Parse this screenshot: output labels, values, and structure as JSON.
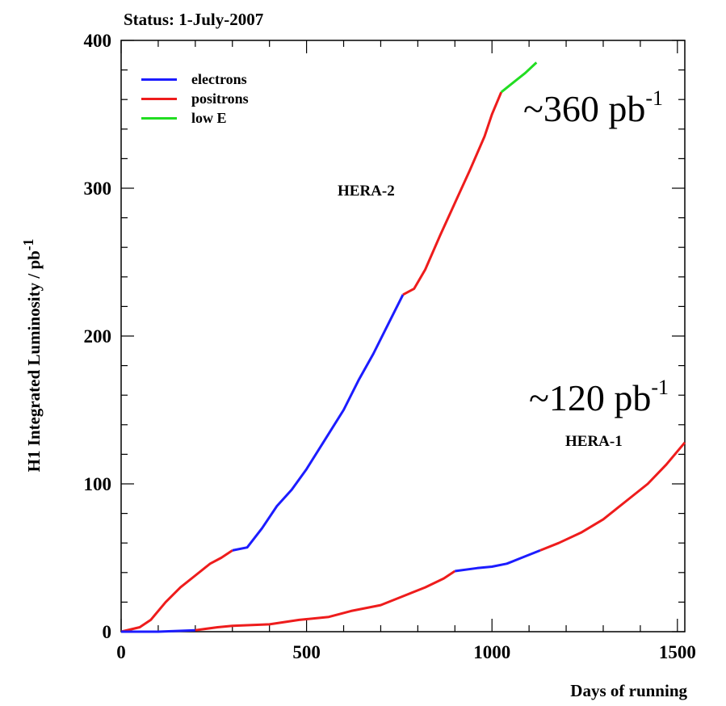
{
  "status_text": "Status:  1-July-2007",
  "annotations": {
    "lumi_hera2": "~360 pb",
    "lumi_hera2_sup": "-1",
    "lumi_hera1": "~120 pb",
    "lumi_hera1_sup": "-1",
    "hera2_label": "HERA-2",
    "hera1_label": "HERA-1"
  },
  "chart_data": {
    "type": "line",
    "title": "",
    "xlabel": "Days of running",
    "ylabel": "H1 Integrated Luminosity / pb",
    "ylabel_sup": "-1",
    "xlim": [
      0,
      1520
    ],
    "ylim": [
      0,
      400
    ],
    "xticks": [
      0,
      500,
      1000,
      1500
    ],
    "yticks": [
      0,
      100,
      200,
      300,
      400
    ],
    "legend": [
      {
        "name": "electrons",
        "color": "#1c1cff"
      },
      {
        "name": "positrons",
        "color": "#ee1c1c"
      },
      {
        "name": "low E",
        "color": "#22dd22"
      }
    ],
    "series": [
      {
        "name": "HERA-2 positrons",
        "color": "#ee1c1c",
        "x": [
          0,
          50,
          80,
          120,
          160,
          200,
          240,
          270,
          300
        ],
        "y": [
          0,
          3,
          8,
          20,
          30,
          38,
          46,
          50,
          55
        ]
      },
      {
        "name": "HERA-2 electrons",
        "color": "#1c1cff",
        "x": [
          300,
          340,
          380,
          420,
          460,
          500,
          550,
          600,
          640,
          680,
          720,
          760
        ],
        "y": [
          55,
          57,
          70,
          85,
          96,
          110,
          130,
          150,
          170,
          188,
          208,
          228
        ]
      },
      {
        "name": "HERA-2 positrons",
        "color": "#ee1c1c",
        "x": [
          760,
          790,
          820,
          860,
          900,
          940,
          980,
          1000,
          1025
        ],
        "y": [
          228,
          232,
          245,
          268,
          290,
          312,
          335,
          350,
          365
        ]
      },
      {
        "name": "HERA-2 low E",
        "color": "#22dd22",
        "x": [
          1025,
          1060,
          1090,
          1120
        ],
        "y": [
          365,
          372,
          378,
          385
        ]
      },
      {
        "name": "HERA-1 electrons",
        "color": "#1c1cff",
        "x": [
          0,
          100,
          200
        ],
        "y": [
          0,
          0,
          1
        ]
      },
      {
        "name": "HERA-1 positrons",
        "color": "#ee1c1c",
        "x": [
          200,
          260,
          300,
          400,
          480,
          560,
          620,
          700,
          760,
          820,
          870,
          900
        ],
        "y": [
          1,
          3,
          4,
          5,
          8,
          10,
          14,
          18,
          24,
          30,
          36,
          41
        ]
      },
      {
        "name": "HERA-1 electrons",
        "color": "#1c1cff",
        "x": [
          900,
          960,
          1000,
          1040,
          1080,
          1130
        ],
        "y": [
          41,
          43,
          44,
          46,
          50,
          55
        ]
      },
      {
        "name": "HERA-1 positrons",
        "color": "#ee1c1c",
        "x": [
          1130,
          1180,
          1240,
          1300,
          1360,
          1420,
          1470,
          1520
        ],
        "y": [
          55,
          60,
          67,
          76,
          88,
          100,
          113,
          128
        ]
      }
    ]
  }
}
